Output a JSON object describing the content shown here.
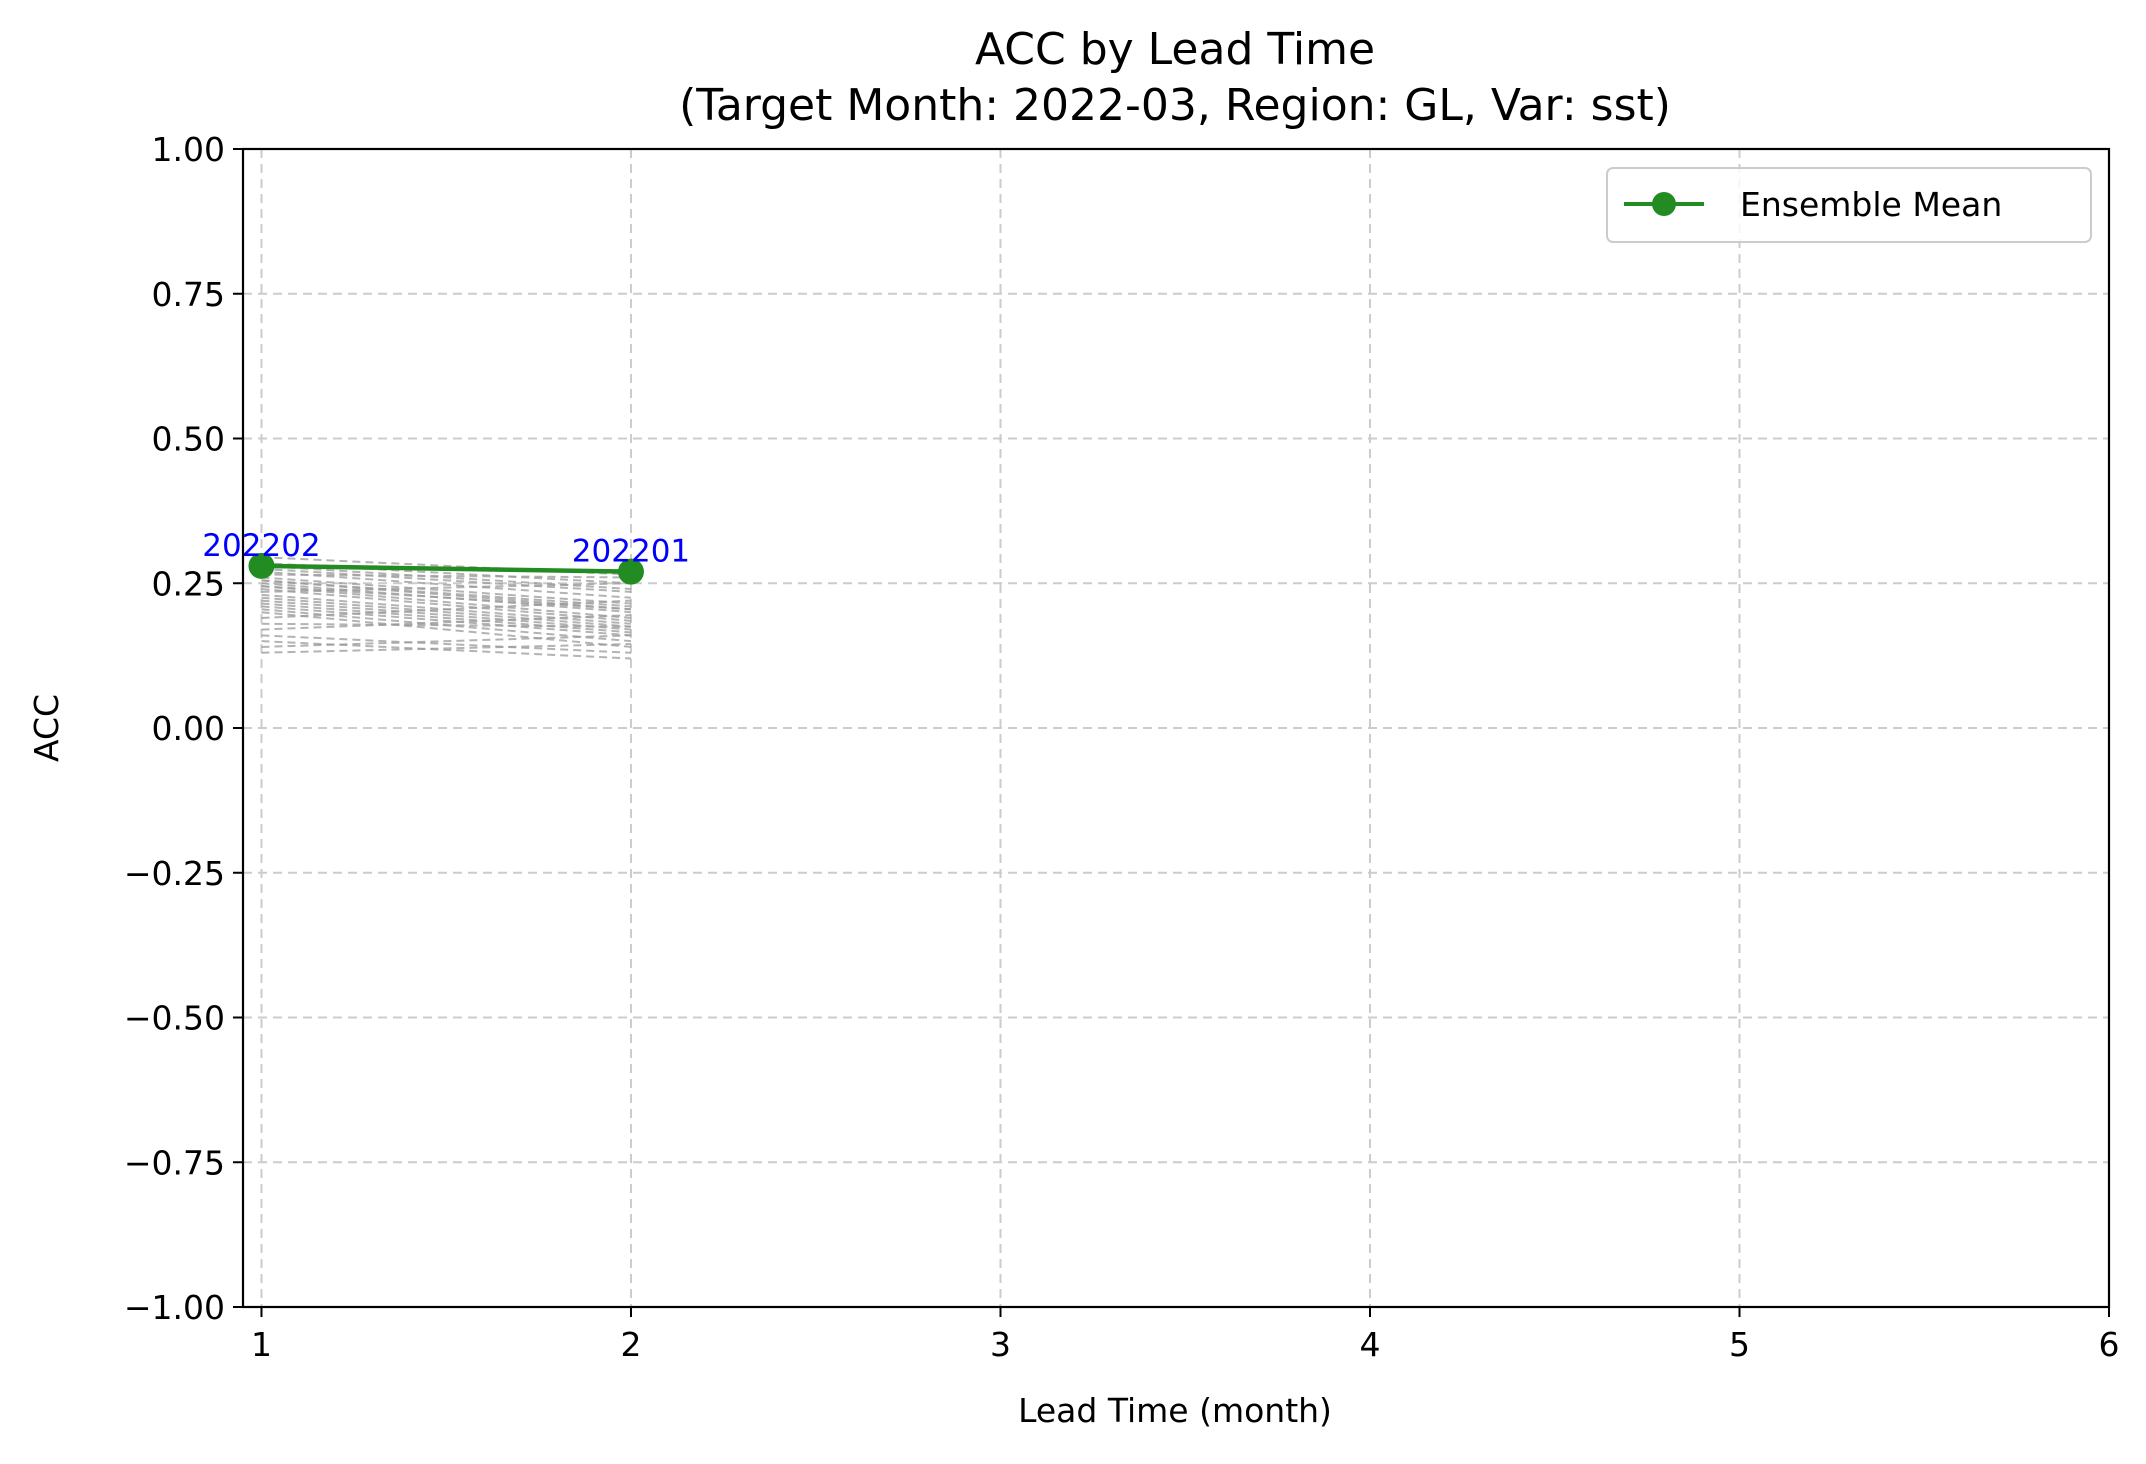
{
  "chart_data": {
    "type": "line",
    "title": "ACC by Lead Time",
    "subtitle": "(Target Month: 2022-03, Region: GL, Var: sst)",
    "xlabel": "Lead Time (month)",
    "ylabel": "ACC",
    "xlim": [
      0.95,
      6
    ],
    "ylim": [
      -1.0,
      1.0
    ],
    "xticks": [
      1,
      2,
      3,
      4,
      5,
      6
    ],
    "xtick_labels": [
      "1",
      "2",
      "3",
      "4",
      "5",
      "6"
    ],
    "yticks": [
      1.0,
      0.75,
      0.5,
      0.25,
      0.0,
      -0.25,
      -0.5,
      -0.75,
      -1.0
    ],
    "ytick_labels": [
      "1.00",
      "0.75",
      "0.50",
      "0.25",
      "0.00",
      "−0.25",
      "−0.50",
      "−0.75",
      "−1.00"
    ],
    "grid": true,
    "legend_position": "top-right",
    "series": [
      {
        "name": "Ensemble Mean",
        "color": "#228B22",
        "marker": "circle",
        "x": [
          1,
          2
        ],
        "y": [
          0.28,
          0.27
        ],
        "point_labels": [
          "202202",
          "202201"
        ],
        "point_label_color": "#0000ff"
      }
    ],
    "members": {
      "color": "#999999",
      "style": "dashed",
      "x": [
        1,
        2
      ],
      "y_pairs": [
        [
          0.295,
          0.265
        ],
        [
          0.285,
          0.25
        ],
        [
          0.28,
          0.24
        ],
        [
          0.275,
          0.235
        ],
        [
          0.27,
          0.225
        ],
        [
          0.265,
          0.26
        ],
        [
          0.26,
          0.215
        ],
        [
          0.255,
          0.205
        ],
        [
          0.25,
          0.2
        ],
        [
          0.245,
          0.19
        ],
        [
          0.24,
          0.185
        ],
        [
          0.235,
          0.25
        ],
        [
          0.23,
          0.18
        ],
        [
          0.225,
          0.175
        ],
        [
          0.22,
          0.17
        ],
        [
          0.215,
          0.165
        ],
        [
          0.21,
          0.16
        ],
        [
          0.205,
          0.15
        ],
        [
          0.2,
          0.14
        ],
        [
          0.19,
          0.22
        ],
        [
          0.18,
          0.175
        ],
        [
          0.17,
          0.195
        ],
        [
          0.16,
          0.13
        ],
        [
          0.15,
          0.12
        ],
        [
          0.14,
          0.16
        ],
        [
          0.13,
          0.145
        ],
        [
          0.255,
          0.21
        ],
        [
          0.245,
          0.205
        ]
      ]
    }
  }
}
